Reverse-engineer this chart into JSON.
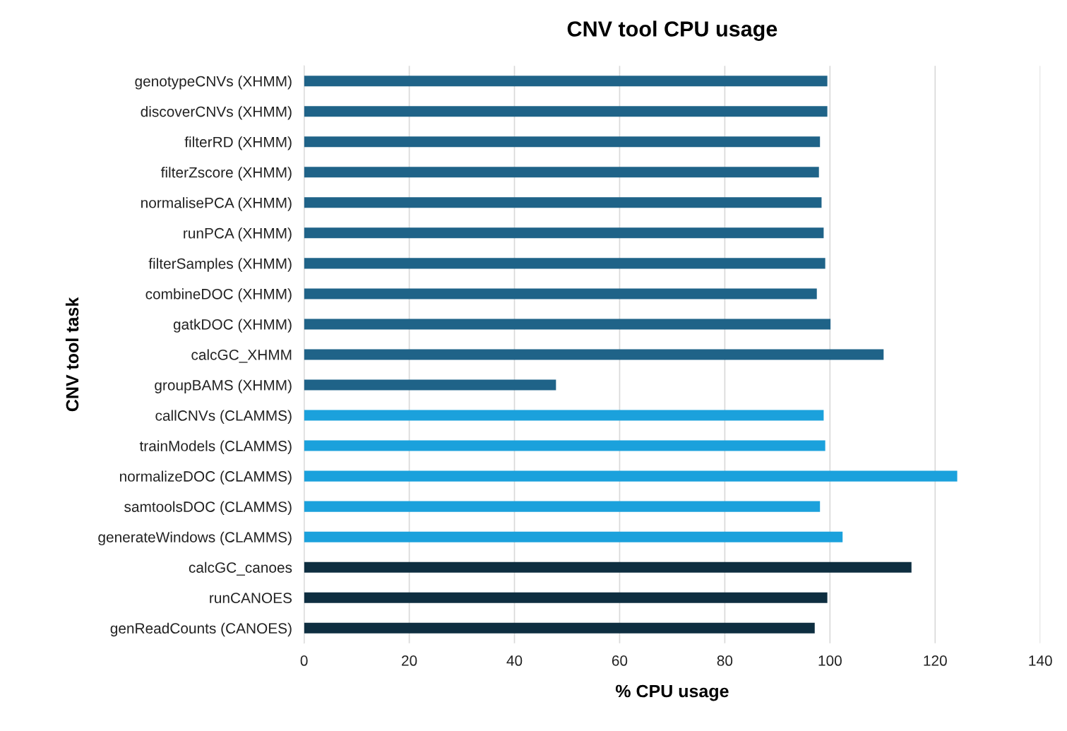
{
  "chart_data": {
    "type": "bar",
    "orientation": "horizontal",
    "title": "CNV tool CPU usage",
    "xlabel": "% CPU usage",
    "ylabel": "CNV tool task",
    "categories": [
      "genotypeCNVs (XHMM)",
      "discoverCNVs (XHMM)",
      "filterRD (XHMM)",
      "filterZscore (XHMM)",
      "normalisePCA (XHMM)",
      "runPCA (XHMM)",
      "filterSamples (XHMM)",
      "combineDOC (XHMM)",
      "gatkDOC (XHMM)",
      "calcGC_XHMM",
      "groupBAMS (XHMM)",
      "callCNVs (CLAMMS)",
      "trainModels (CLAMMS)",
      "normalizeDOC (CLAMMS)",
      "samtoolsDOC (CLAMMS)",
      "generateWindows (CLAMMS)",
      "calcGC_canoes",
      "runCANOES",
      "genReadCounts (CANOES)"
    ],
    "values": [
      99.5,
      99.5,
      98.1,
      97.9,
      98.4,
      98.8,
      99.1,
      97.5,
      100.1,
      110.2,
      47.9,
      98.8,
      99.1,
      124.2,
      98.1,
      102.4,
      115.5,
      99.5,
      97.1
    ],
    "colors": [
      "#1f6388",
      "#1f6388",
      "#1f6388",
      "#1f6388",
      "#1f6388",
      "#1f6388",
      "#1f6388",
      "#1f6388",
      "#1f6388",
      "#1f6388",
      "#1f6388",
      "#1ba1dc",
      "#1ba1dc",
      "#1ba1dc",
      "#1ba1dc",
      "#1ba1dc",
      "#0e2e40",
      "#0e2e40",
      "#0e2e40"
    ],
    "xlim": [
      0,
      140
    ],
    "xticks": [
      0,
      20,
      40,
      60,
      80,
      100,
      120,
      140
    ],
    "grid": "x",
    "legend": false
  }
}
